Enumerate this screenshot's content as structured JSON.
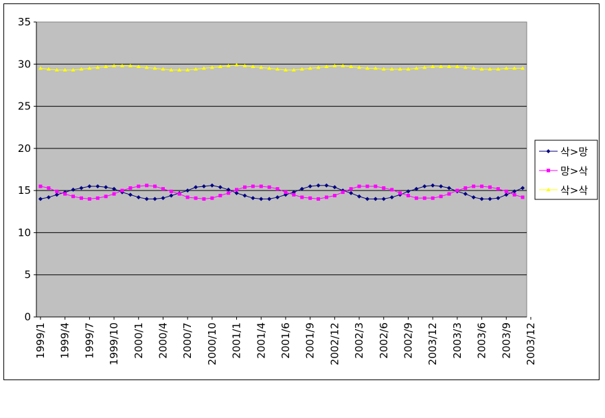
{
  "chart_data": {
    "type": "line",
    "title": "",
    "xlabel": "",
    "ylabel": "",
    "ylim": [
      0,
      35
    ],
    "yticks": [
      0,
      5,
      10,
      15,
      20,
      25,
      30,
      35
    ],
    "grid": true,
    "legend_position": "right",
    "plot_background": "#c0c0c0",
    "x": [
      "1999/1",
      "1999/2",
      "1999/3",
      "1999/4",
      "1999/5",
      "1999/6",
      "1999/7",
      "1999/8",
      "1999/9",
      "1999/10",
      "1999/11",
      "1999/12",
      "2000/1",
      "2000/2",
      "2000/3",
      "2000/4",
      "2000/5",
      "2000/6",
      "2000/7",
      "2000/8",
      "2000/9",
      "2000/10",
      "2000/11",
      "2000/12",
      "2001/1",
      "2001/2",
      "2001/3",
      "2001/4",
      "2001/5",
      "2001/6",
      "2001/7",
      "2001/8",
      "2001/9",
      "2001/10",
      "2001/11",
      "2001/12",
      "2002/1",
      "2002/2",
      "2002/3",
      "2002/4",
      "2002/5",
      "2002/6",
      "2002/7",
      "2002/8",
      "2002/9",
      "2002/10",
      "2002/11",
      "2002/12",
      "2003/1",
      "2003/2",
      "2003/3",
      "2003/4",
      "2003/5",
      "2003/6",
      "2003/7",
      "2003/8",
      "2003/9",
      "2003/10",
      "2003/11",
      "2003/12"
    ],
    "tick_labels": [
      "1999/1",
      "1999/4",
      "1999/7",
      "1999/10",
      "2000/1",
      "2000/4",
      "2000/7",
      "2000/10",
      "2001/1",
      "2001/4",
      "2001/6",
      "2001/9",
      "2002/12",
      "2002/3",
      "2002/6",
      "2002/9",
      "2003/12",
      "2003/3",
      "2003/6",
      "2003/9",
      "2003/12"
    ],
    "series": [
      {
        "name": "삭>망",
        "color": "#000080",
        "marker": "diamond",
        "values": [
          14.0,
          14.2,
          14.5,
          14.8,
          15.1,
          15.3,
          15.5,
          15.5,
          15.4,
          15.2,
          14.8,
          14.5,
          14.2,
          14.0,
          14.0,
          14.1,
          14.4,
          14.7,
          15.0,
          15.4,
          15.5,
          15.6,
          15.4,
          15.1,
          14.7,
          14.4,
          14.1,
          14.0,
          14.0,
          14.2,
          14.5,
          14.8,
          15.2,
          15.5,
          15.6,
          15.6,
          15.4,
          15.0,
          14.7,
          14.3,
          14.0,
          14.0,
          14.0,
          14.2,
          14.5,
          14.9,
          15.2,
          15.5,
          15.6,
          15.5,
          15.3,
          14.9,
          14.6,
          14.2,
          14.0,
          14.0,
          14.1,
          14.5,
          14.9,
          15.3
        ]
      },
      {
        "name": "망>삭",
        "color": "#ff00ff",
        "marker": "square",
        "values": [
          15.5,
          15.3,
          14.9,
          14.6,
          14.3,
          14.1,
          14.0,
          14.1,
          14.3,
          14.6,
          15.0,
          15.3,
          15.5,
          15.6,
          15.5,
          15.2,
          14.9,
          14.6,
          14.2,
          14.1,
          14.0,
          14.1,
          14.4,
          14.7,
          15.1,
          15.4,
          15.5,
          15.5,
          15.4,
          15.2,
          14.8,
          14.5,
          14.2,
          14.1,
          14.0,
          14.2,
          14.4,
          14.8,
          15.2,
          15.5,
          15.5,
          15.5,
          15.3,
          15.1,
          14.7,
          14.4,
          14.1,
          14.1,
          14.1,
          14.3,
          14.6,
          15.0,
          15.3,
          15.5,
          15.5,
          15.4,
          15.2,
          14.9,
          14.5,
          14.2
        ]
      },
      {
        "name": "삭>삭",
        "color": "#ffff00",
        "marker": "triangle",
        "values": [
          29.5,
          29.4,
          29.3,
          29.3,
          29.3,
          29.4,
          29.5,
          29.6,
          29.7,
          29.8,
          29.8,
          29.8,
          29.7,
          29.6,
          29.5,
          29.4,
          29.3,
          29.3,
          29.3,
          29.4,
          29.5,
          29.6,
          29.7,
          29.8,
          29.9,
          29.8,
          29.7,
          29.6,
          29.5,
          29.4,
          29.3,
          29.3,
          29.4,
          29.5,
          29.6,
          29.7,
          29.8,
          29.8,
          29.7,
          29.6,
          29.5,
          29.5,
          29.4,
          29.4,
          29.4,
          29.4,
          29.5,
          29.6,
          29.7,
          29.7,
          29.7,
          29.7,
          29.6,
          29.5,
          29.4,
          29.4,
          29.4,
          29.5,
          29.5,
          29.5
        ]
      }
    ]
  }
}
